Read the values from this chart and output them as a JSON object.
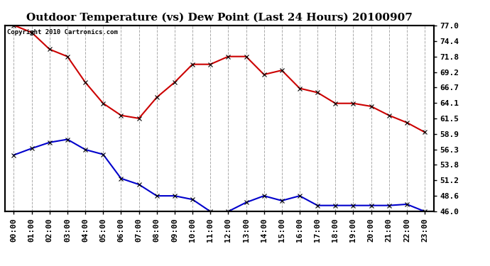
{
  "title": "Outdoor Temperature (vs) Dew Point (Last 24 Hours) 20100907",
  "copyright_text": "Copyright 2010 Cartronics.com",
  "x_labels": [
    "00:00",
    "01:00",
    "02:00",
    "03:00",
    "04:00",
    "05:00",
    "06:00",
    "07:00",
    "08:00",
    "09:00",
    "10:00",
    "11:00",
    "12:00",
    "13:00",
    "14:00",
    "15:00",
    "16:00",
    "17:00",
    "18:00",
    "19:00",
    "20:00",
    "21:00",
    "22:00",
    "23:00"
  ],
  "temp_data": [
    77.0,
    75.8,
    73.0,
    71.8,
    67.5,
    64.0,
    62.0,
    61.5,
    65.0,
    67.5,
    70.5,
    70.5,
    71.8,
    71.8,
    68.8,
    69.5,
    66.5,
    65.8,
    64.0,
    64.0,
    63.5,
    62.0,
    60.8,
    59.2
  ],
  "dew_data": [
    55.4,
    56.5,
    57.5,
    58.0,
    56.3,
    55.5,
    51.5,
    50.5,
    48.6,
    48.6,
    48.0,
    46.0,
    46.0,
    47.5,
    48.6,
    47.8,
    48.6,
    47.0,
    47.0,
    47.0,
    47.0,
    47.0,
    47.2,
    46.0
  ],
  "temp_color": "#cc0000",
  "dew_color": "#0000cc",
  "ylim_min": 46.0,
  "ylim_max": 77.0,
  "yticks": [
    46.0,
    48.6,
    51.2,
    53.8,
    56.3,
    58.9,
    61.5,
    64.1,
    66.7,
    69.2,
    71.8,
    74.4,
    77.0
  ],
  "background_color": "#ffffff",
  "plot_bg_color": "#ffffff",
  "grid_color": "#aaaaaa",
  "title_fontsize": 11,
  "tick_fontsize": 8,
  "marker": "x",
  "marker_size": 5,
  "line_width": 1.5
}
